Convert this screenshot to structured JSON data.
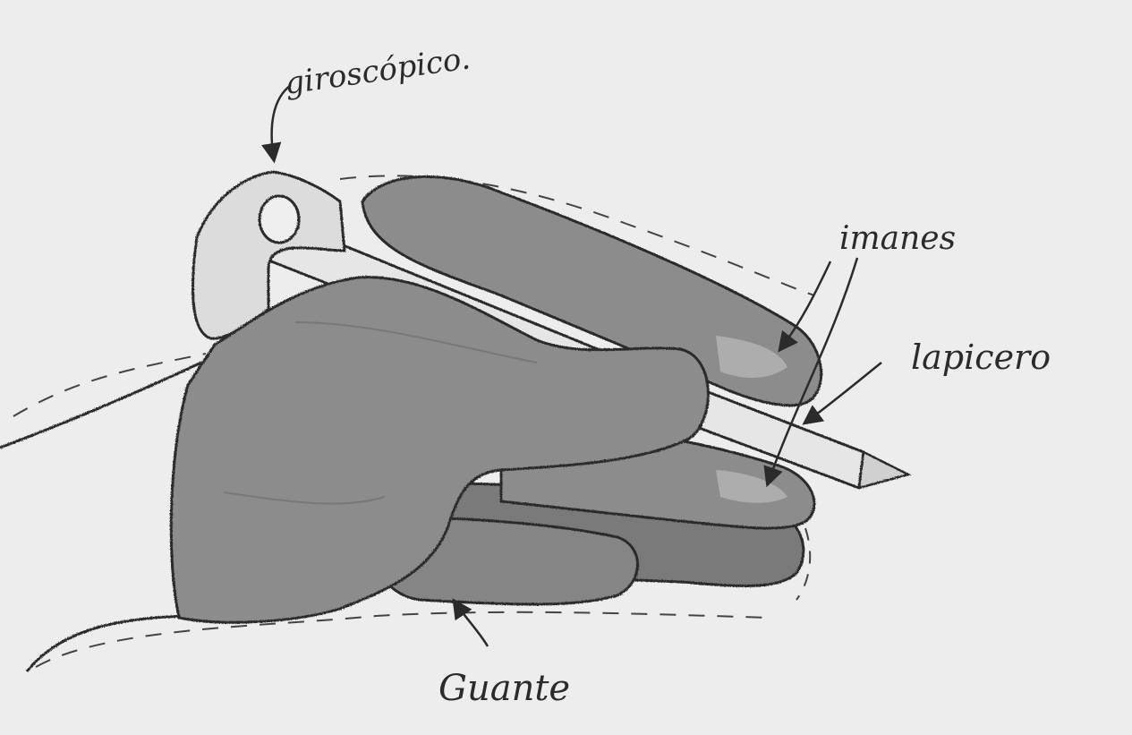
{
  "labels": {
    "giroscopico": "giroscópico.",
    "imanes": "imanes",
    "lapicero": "lapicero",
    "guante": "Guante"
  },
  "colors": {
    "paper": "#ededed",
    "glove": "#8c8c8c",
    "glove_dark": "#7a7a7a",
    "pen": "#e6e6e6",
    "outline": "#2b2b2b"
  }
}
